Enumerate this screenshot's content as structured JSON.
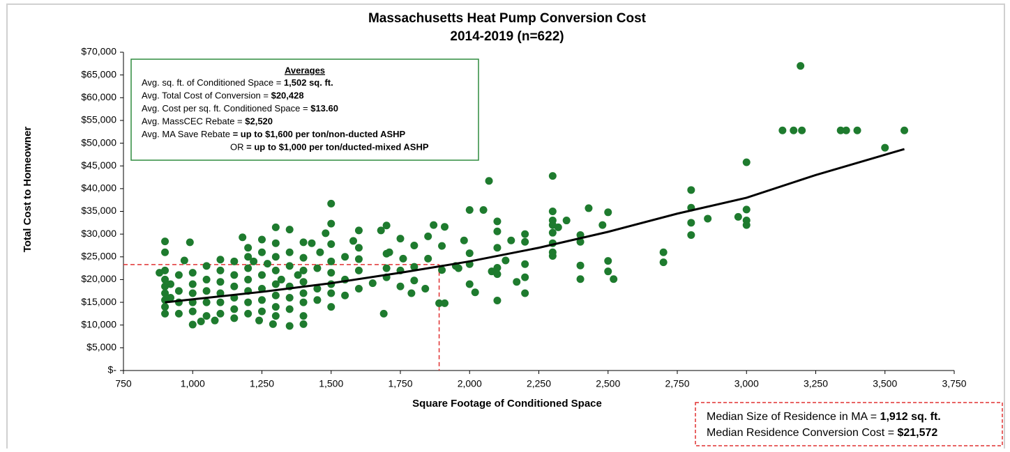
{
  "chart_data": {
    "type": "scatter",
    "title": "Massachusetts Heat Pump Conversion Cost",
    "subtitle": "2014-2019 (n=622)",
    "x_label": "Square Footage of Conditioned Space",
    "y_label": "Total Cost to Homeowner",
    "xlim": [
      750,
      3750
    ],
    "xticks": [
      750,
      {
        "value": 1000,
        "label": "1,000"
      },
      {
        "value": 1250,
        "label": "1,250"
      },
      {
        "value": 1500,
        "label": "1,500"
      },
      {
        "value": 1750,
        "label": "1,750"
      },
      {
        "value": 2000,
        "label": "2,000"
      },
      {
        "value": 2250,
        "label": "2,250"
      },
      {
        "value": 2500,
        "label": "2,500"
      },
      {
        "value": 2750,
        "label": "2,750"
      },
      {
        "value": 3000,
        "label": "3,000"
      },
      {
        "value": 3250,
        "label": "3,250"
      },
      {
        "value": 3500,
        "label": "3,500"
      },
      {
        "value": 3750,
        "label": "3,750"
      }
    ],
    "ylim": [
      0,
      70000
    ],
    "yticks": [
      {
        "value": 0,
        "label": "$-"
      },
      {
        "value": 5000,
        "label": "$5,000"
      },
      {
        "value": 10000,
        "label": "$10,000"
      },
      {
        "value": 15000,
        "label": "$15,000"
      },
      {
        "value": 20000,
        "label": "$20,000"
      },
      {
        "value": 25000,
        "label": "$25,000"
      },
      {
        "value": 30000,
        "label": "$30,000"
      },
      {
        "value": 35000,
        "label": "$35,000"
      },
      {
        "value": 40000,
        "label": "$40,000"
      },
      {
        "value": 45000,
        "label": "$45,000"
      },
      {
        "value": 50000,
        "label": "$50,000"
      },
      {
        "value": 55000,
        "label": "$55,000"
      },
      {
        "value": 60000,
        "label": "$60,000"
      },
      {
        "value": 65000,
        "label": "$65,000"
      },
      {
        "value": 70000,
        "label": "$70,000"
      }
    ],
    "grid": false,
    "color": "#1e7b2e",
    "x": [
      3195,
      3130,
      3170,
      3200,
      3340,
      3360,
      3400,
      3570,
      3500,
      3000,
      3000,
      3000,
      3000,
      2970,
      2860,
      2800,
      2800,
      2800,
      2800,
      2700,
      2700,
      2520,
      2500,
      2500,
      2500,
      2480,
      2430,
      2400,
      2400,
      2400,
      2400,
      2350,
      2320,
      2300,
      2300,
      2300,
      2300,
      2300,
      2300,
      2300,
      2300,
      2200,
      2200,
      2200,
      2200,
      2200,
      2150,
      2130,
      2170,
      2100,
      2100,
      2100,
      2100,
      2100,
      2100,
      2070,
      2050,
      2080,
      2000,
      2000,
      2000,
      2000,
      2020,
      1980,
      1950,
      1960,
      1910,
      1900,
      1900,
      1910,
      1890,
      1870,
      1850,
      1850,
      1840,
      1800,
      1800,
      1800,
      1790,
      1760,
      1750,
      1750,
      1750,
      1710,
      1700,
      1700,
      1700,
      1700,
      1690,
      1680,
      1650,
      1600,
      1600,
      1600,
      1600,
      1600,
      1580,
      1550,
      1550,
      1550,
      1500,
      1500,
      1500,
      1500,
      1500,
      1500,
      1500,
      1500,
      1480,
      1460,
      1450,
      1450,
      1450,
      1430,
      1400,
      1400,
      1400,
      1400,
      1400,
      1400,
      1400,
      1400,
      1380,
      1350,
      1350,
      1350,
      1350,
      1350,
      1350,
      1350,
      1320,
      1300,
      1300,
      1300,
      1300,
      1300,
      1300,
      1300,
      1300,
      1290,
      1270,
      1250,
      1250,
      1250,
      1250,
      1250,
      1250,
      1240,
      1220,
      1200,
      1200,
      1200,
      1200,
      1200,
      1200,
      1200,
      1180,
      1150,
      1150,
      1150,
      1150,
      1150,
      1150,
      1100,
      1100,
      1100,
      1100,
      1100,
      1100,
      1080,
      1050,
      1050,
      1050,
      1050,
      1050,
      1030,
      1000,
      1000,
      1000,
      1000,
      1000,
      1000,
      990,
      970,
      950,
      950,
      950,
      950,
      920,
      920,
      900,
      900,
      900,
      900,
      900,
      900,
      900,
      900,
      900,
      880
    ],
    "values": [
      67000,
      52800,
      52800,
      52800,
      52800,
      52800,
      52800,
      52800,
      49000,
      45800,
      35400,
      33000,
      32000,
      33800,
      33400,
      39700,
      35800,
      32500,
      29800,
      26000,
      23800,
      20100,
      34800,
      24100,
      21800,
      32000,
      35700,
      29800,
      28300,
      23100,
      20100,
      33000,
      31500,
      42800,
      35000,
      33000,
      32000,
      30300,
      28000,
      26000,
      25200,
      30000,
      28300,
      23400,
      20500,
      17000,
      28600,
      24200,
      19500,
      32800,
      30600,
      27000,
      22600,
      21200,
      15400,
      41700,
      35300,
      21800,
      35300,
      25800,
      23400,
      19000,
      17200,
      28600,
      23000,
      22500,
      31600,
      27400,
      22100,
      14800,
      14800,
      32000,
      29500,
      24600,
      18000,
      27500,
      22800,
      19800,
      17000,
      24600,
      29000,
      22000,
      18500,
      26000,
      31900,
      25700,
      22500,
      20500,
      12500,
      30800,
      19200,
      30800,
      27000,
      24500,
      22000,
      18000,
      28500,
      25000,
      20000,
      16500,
      36700,
      32300,
      27800,
      24000,
      21500,
      19000,
      17000,
      14000,
      30200,
      26000,
      22500,
      18000,
      15500,
      28000,
      28200,
      24800,
      22000,
      19500,
      17000,
      15000,
      12000,
      10200,
      21000,
      31000,
      26000,
      23000,
      18500,
      16000,
      13500,
      9800,
      20000,
      31500,
      28000,
      25000,
      22000,
      19000,
      16500,
      14000,
      12000,
      10200,
      23500,
      28800,
      26000,
      21000,
      18000,
      15500,
      13000,
      11000,
      24000,
      27000,
      25000,
      22500,
      20000,
      17500,
      15000,
      12500,
      29300,
      24000,
      21000,
      18500,
      16000,
      13500,
      11500,
      24400,
      22000,
      19500,
      17000,
      15000,
      12500,
      11000,
      23000,
      20000,
      17500,
      15000,
      12000,
      10800,
      21500,
      19000,
      17000,
      15000,
      13000,
      10100,
      28200,
      24200,
      21000,
      17500,
      15000,
      12500,
      19000,
      16000,
      28400,
      26000,
      22000,
      20000,
      18500,
      17000,
      15500,
      14000,
      12500,
      21500
    ],
    "trendline": {
      "color": "#000000",
      "x": [
        900,
        1250,
        1500,
        1750,
        2000,
        2250,
        2500,
        2750,
        3000,
        3250,
        3570
      ],
      "values": [
        15000,
        17300,
        19200,
        21500,
        24000,
        27000,
        30500,
        34500,
        38000,
        43000,
        48700
      ]
    },
    "reference_lines": {
      "color": "#e03030",
      "x": 1890,
      "y": 23300
    },
    "averages": {
      "heading": "Averages",
      "lines": [
        {
          "text": "Avg. sq. ft. of Conditioned Space = ",
          "bold": "1,502 sq. ft."
        },
        {
          "text": "Avg. Total Cost of Conversion = ",
          "bold": "$20,428"
        },
        {
          "text": "Avg. Cost per sq. ft. Conditioned Space = ",
          "bold": "$13.60"
        },
        {
          "text": "Avg. MassCEC Rebate = ",
          "bold": "$2,520"
        },
        {
          "text": "Avg. MA Save Rebate ",
          "bold": "= up to $1,600 per ton/non-ducted ASHP"
        },
        {
          "text": "OR ",
          "bold": "= up to $1,000 per ton/ducted-mixed ASHP"
        }
      ]
    },
    "median": [
      {
        "text": "Median Size of Residence in MA = ",
        "bold": "1,912 sq. ft."
      },
      {
        "text": "Median Residence Conversion Cost = ",
        "bold": "$21,572"
      }
    ]
  }
}
